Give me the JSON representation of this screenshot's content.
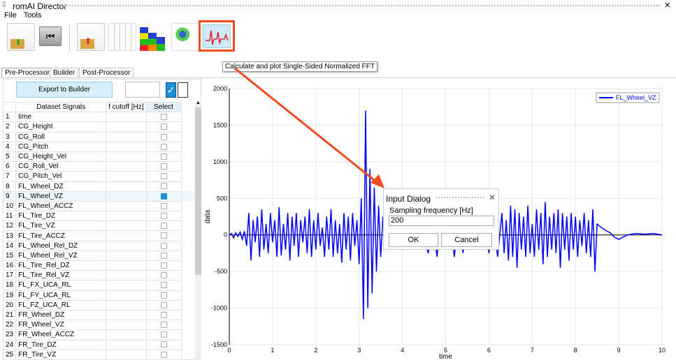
{
  "window": {
    "title": "romAI Director"
  },
  "menu": [
    "File",
    "Tools"
  ],
  "toolbar": {
    "icons": [
      "import-dataset-icon",
      "back-icon",
      "export-dataset-icon",
      "scatter-plot-icon",
      "bar-stack-icon",
      "cluster-plot-icon",
      "fft-plot-icon"
    ],
    "tooltip": "Calculate and plot Single-Sided Normalized FFT",
    "highlight_color": "#f04a1e"
  },
  "tabs": [
    "Pre-Processor",
    "Builder",
    "Post-Processor"
  ],
  "left": {
    "export_label": "Export to Builder",
    "headers": [
      "Dataset Signals",
      "f cutoff [Hz]",
      "Select"
    ],
    "rows": [
      {
        "n": "1",
        "name": "time",
        "sel": false
      },
      {
        "n": "2",
        "name": "CG_Height",
        "sel": false
      },
      {
        "n": "3",
        "name": "CG_Roll",
        "sel": false
      },
      {
        "n": "4",
        "name": "CG_Pitch",
        "sel": false
      },
      {
        "n": "5",
        "name": "CG_Height_Vel",
        "sel": false
      },
      {
        "n": "6",
        "name": "CG_Roll_Vel",
        "sel": false
      },
      {
        "n": "7",
        "name": "CG_Pitch_Vel",
        "sel": false
      },
      {
        "n": "8",
        "name": "FL_Wheel_DZ",
        "sel": false
      },
      {
        "n": "9",
        "name": "FL_Wheel_VZ",
        "sel": true
      },
      {
        "n": "10",
        "name": "FL_Wheel_ACCZ",
        "sel": false
      },
      {
        "n": "11",
        "name": "FL_Tire_DZ",
        "sel": false
      },
      {
        "n": "12",
        "name": "FL_Tire_VZ",
        "sel": false
      },
      {
        "n": "13",
        "name": "FL_Tire_ACCZ",
        "sel": false
      },
      {
        "n": "14",
        "name": "FL_Wheel_Rel_DZ",
        "sel": false
      },
      {
        "n": "15",
        "name": "FL_Wheel_Rel_VZ",
        "sel": false
      },
      {
        "n": "16",
        "name": "FL_Tire_Rel_DZ",
        "sel": false
      },
      {
        "n": "17",
        "name": "FL_Tire_Rel_VZ",
        "sel": false
      },
      {
        "n": "18",
        "name": "FL_FX_UCA_RL",
        "sel": false
      },
      {
        "n": "19",
        "name": "FL_FY_UCA_RL",
        "sel": false
      },
      {
        "n": "20",
        "name": "FL_FZ_UCA_RL",
        "sel": false
      },
      {
        "n": "21",
        "name": "FR_Wheel_DZ",
        "sel": false
      },
      {
        "n": "22",
        "name": "FR_Wheel_VZ",
        "sel": false
      },
      {
        "n": "23",
        "name": "FR_Wheel_ACCZ",
        "sel": false
      },
      {
        "n": "24",
        "name": "FR_Tire_DZ",
        "sel": false
      },
      {
        "n": "25",
        "name": "FR_Tire_VZ",
        "sel": false
      }
    ]
  },
  "dialog": {
    "title": "Input Dialog",
    "label": "Sampling frequency [Hz]",
    "value": "200",
    "ok": "OK",
    "cancel": "Cancel"
  },
  "chart_data": {
    "type": "line",
    "xlabel": "time",
    "ylabel": "data",
    "xlim": [
      0,
      10
    ],
    "ylim": [
      -1500,
      2000
    ],
    "xticks": [
      0,
      1,
      2,
      3,
      4,
      5,
      6,
      7,
      8,
      9,
      10
    ],
    "yticks": [
      -1500,
      -1000,
      -500,
      0,
      500,
      1000,
      1500,
      2000
    ],
    "grid": true,
    "legend": "top-right",
    "series": [
      {
        "name": "FL_Wheel_VZ",
        "color": "#0000ff",
        "points": [
          [
            0,
            0
          ],
          [
            0.05,
            20
          ],
          [
            0.1,
            -40
          ],
          [
            0.15,
            30
          ],
          [
            0.2,
            -20
          ],
          [
            0.25,
            40
          ],
          [
            0.3,
            -60
          ],
          [
            0.35,
            50
          ],
          [
            0.4,
            -150
          ],
          [
            0.45,
            300
          ],
          [
            0.5,
            -350
          ],
          [
            0.55,
            200
          ],
          [
            0.6,
            -100
          ],
          [
            0.65,
            250
          ],
          [
            0.7,
            -300
          ],
          [
            0.75,
            350
          ],
          [
            0.8,
            -200
          ],
          [
            0.85,
            150
          ],
          [
            0.9,
            -250
          ],
          [
            0.95,
            300
          ],
          [
            1.0,
            -100
          ],
          [
            1.05,
            200
          ],
          [
            1.1,
            -300
          ],
          [
            1.15,
            380
          ],
          [
            1.2,
            -280
          ],
          [
            1.25,
            150
          ],
          [
            1.3,
            -200
          ],
          [
            1.35,
            300
          ],
          [
            1.4,
            -350
          ],
          [
            1.45,
            250
          ],
          [
            1.5,
            -150
          ],
          [
            1.55,
            300
          ],
          [
            1.6,
            -300
          ],
          [
            1.65,
            200
          ],
          [
            1.7,
            -100
          ],
          [
            1.75,
            250
          ],
          [
            1.8,
            -250
          ],
          [
            1.85,
            350
          ],
          [
            1.9,
            -300
          ],
          [
            1.95,
            200
          ],
          [
            2.0,
            -200
          ],
          [
            2.05,
            300
          ],
          [
            2.1,
            -150
          ],
          [
            2.15,
            100
          ],
          [
            2.2,
            -300
          ],
          [
            2.25,
            250
          ],
          [
            2.3,
            -200
          ],
          [
            2.35,
            350
          ],
          [
            2.4,
            -300
          ],
          [
            2.45,
            200
          ],
          [
            2.5,
            -250
          ],
          [
            2.55,
            150
          ],
          [
            2.6,
            -380
          ],
          [
            2.65,
            300
          ],
          [
            2.7,
            -200
          ],
          [
            2.75,
            250
          ],
          [
            2.8,
            -350
          ],
          [
            2.85,
            300
          ],
          [
            2.9,
            -150
          ],
          [
            2.95,
            200
          ],
          [
            3.0,
            -400
          ],
          [
            3.05,
            500
          ],
          [
            3.1,
            -1150
          ],
          [
            3.15,
            1700
          ],
          [
            3.2,
            -1000
          ],
          [
            3.25,
            900
          ],
          [
            3.3,
            -800
          ],
          [
            3.35,
            650
          ],
          [
            3.4,
            -500
          ],
          [
            3.45,
            400
          ],
          [
            3.5,
            -300
          ],
          [
            3.55,
            250
          ],
          [
            3.6,
            -200
          ],
          [
            3.65,
            150
          ],
          [
            3.7,
            -100
          ],
          [
            3.8,
            200
          ],
          [
            3.9,
            -200
          ],
          [
            4.0,
            150
          ],
          [
            4.2,
            -150
          ],
          [
            4.4,
            100
          ],
          [
            4.6,
            -250
          ],
          [
            4.7,
            200
          ],
          [
            4.8,
            -300
          ],
          [
            4.9,
            250
          ],
          [
            5.0,
            -200
          ],
          [
            5.1,
            200
          ],
          [
            5.2,
            -300
          ],
          [
            5.3,
            250
          ],
          [
            5.4,
            -250
          ],
          [
            5.5,
            200
          ],
          [
            5.6,
            -150
          ],
          [
            5.7,
            250
          ],
          [
            5.8,
            -200
          ],
          [
            5.9,
            300
          ],
          [
            6.0,
            -250
          ],
          [
            6.1,
            200
          ],
          [
            6.2,
            -300
          ],
          [
            6.3,
            300
          ],
          [
            6.35,
            -250
          ],
          [
            6.4,
            200
          ],
          [
            6.45,
            -350
          ],
          [
            6.5,
            400
          ],
          [
            6.55,
            -300
          ],
          [
            6.6,
            350
          ],
          [
            6.65,
            -450
          ],
          [
            6.7,
            300
          ],
          [
            6.75,
            -200
          ],
          [
            6.8,
            250
          ],
          [
            6.85,
            -300
          ],
          [
            6.9,
            400
          ],
          [
            6.95,
            -250
          ],
          [
            7.0,
            150
          ],
          [
            7.05,
            -300
          ],
          [
            7.1,
            350
          ],
          [
            7.15,
            -200
          ],
          [
            7.2,
            300
          ],
          [
            7.25,
            -400
          ],
          [
            7.3,
            450
          ],
          [
            7.35,
            -300
          ],
          [
            7.4,
            250
          ],
          [
            7.45,
            -200
          ],
          [
            7.5,
            300
          ],
          [
            7.55,
            -250
          ],
          [
            7.6,
            350
          ],
          [
            7.65,
            -450
          ],
          [
            7.7,
            300
          ],
          [
            7.75,
            -200
          ],
          [
            7.8,
            250
          ],
          [
            7.85,
            -350
          ],
          [
            7.9,
            300
          ],
          [
            7.95,
            -200
          ],
          [
            8.0,
            250
          ],
          [
            8.05,
            -300
          ],
          [
            8.1,
            200
          ],
          [
            8.15,
            -150
          ],
          [
            8.2,
            300
          ],
          [
            8.25,
            -250
          ],
          [
            8.3,
            200
          ],
          [
            8.35,
            -300
          ],
          [
            8.4,
            350
          ],
          [
            8.45,
            -500
          ],
          [
            8.5,
            150
          ],
          [
            8.6,
            100
          ],
          [
            8.7,
            60
          ],
          [
            8.8,
            30
          ],
          [
            8.9,
            -30
          ],
          [
            9.0,
            -60
          ],
          [
            9.1,
            -30
          ],
          [
            9.2,
            0
          ],
          [
            9.4,
            20
          ],
          [
            9.6,
            10
          ],
          [
            9.8,
            20
          ],
          [
            10,
            0
          ]
        ]
      }
    ]
  }
}
